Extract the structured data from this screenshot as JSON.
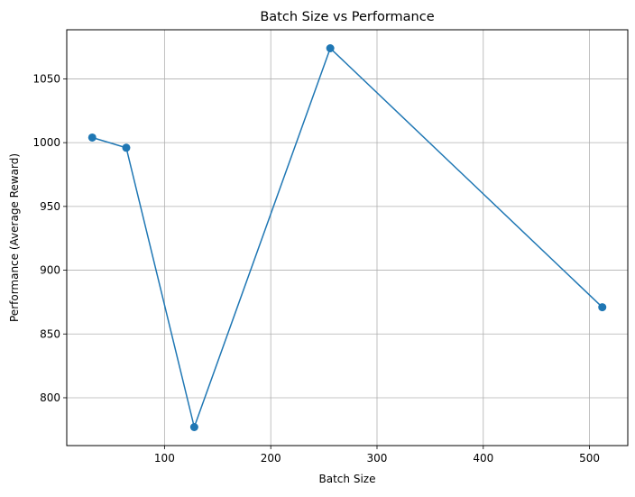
{
  "chart_data": {
    "type": "line",
    "title": "Batch Size vs Performance",
    "xlabel": "Batch Size",
    "ylabel": "Performance (Average Reward)",
    "xlim": [
      8.0,
      536.0
    ],
    "ylim": [
      762.5,
      1088.5
    ],
    "xticks": [
      100,
      200,
      300,
      400,
      500
    ],
    "yticks": [
      800,
      850,
      900,
      950,
      1000,
      1050
    ],
    "grid": true,
    "series": [
      {
        "x": [
          32,
          64,
          128,
          256,
          512
        ],
        "y": [
          1004,
          996,
          777,
          1074,
          871
        ],
        "color": "#1f77b4",
        "marker": "circle"
      }
    ]
  }
}
